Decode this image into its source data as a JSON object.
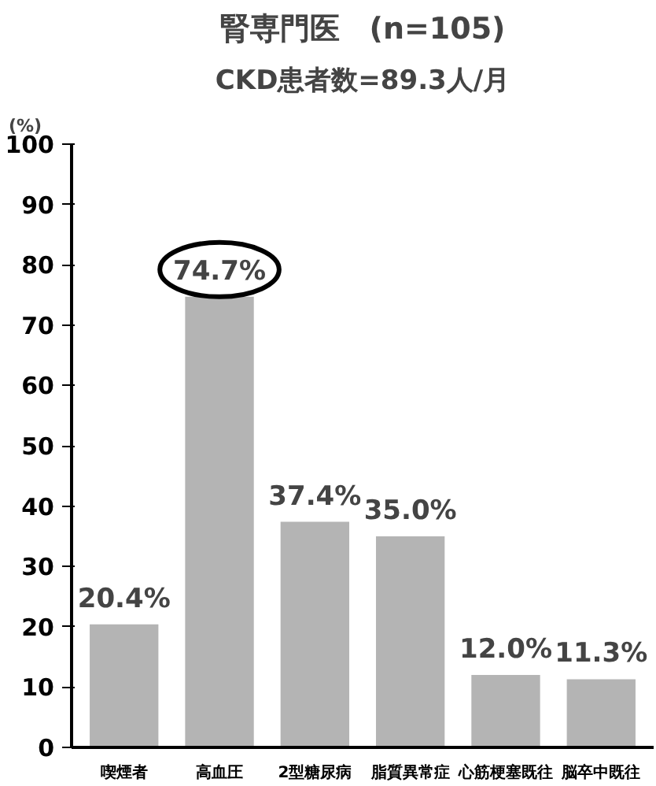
{
  "chart_data": {
    "type": "bar",
    "title": "腎専門医　(n=105)",
    "subtitle": "CKD患者数=89.3人/月",
    "ylabel": "(%)",
    "categories": [
      "喫煙者",
      "高血圧",
      "2型糖尿病",
      "脂質異常症",
      "心筋梗塞既往",
      "脳卒中既往"
    ],
    "values": [
      20.4,
      74.7,
      37.4,
      35.0,
      12.0,
      11.3
    ],
    "value_labels": [
      "20.4%",
      "74.7%",
      "37.4%",
      "35.0%",
      "12.0%",
      "11.3%"
    ],
    "color": "#b4b4b4",
    "ylim": [
      0,
      100
    ],
    "yticks": [
      0,
      10,
      20,
      30,
      40,
      50,
      60,
      70,
      80,
      90,
      100
    ],
    "grid": false
  }
}
